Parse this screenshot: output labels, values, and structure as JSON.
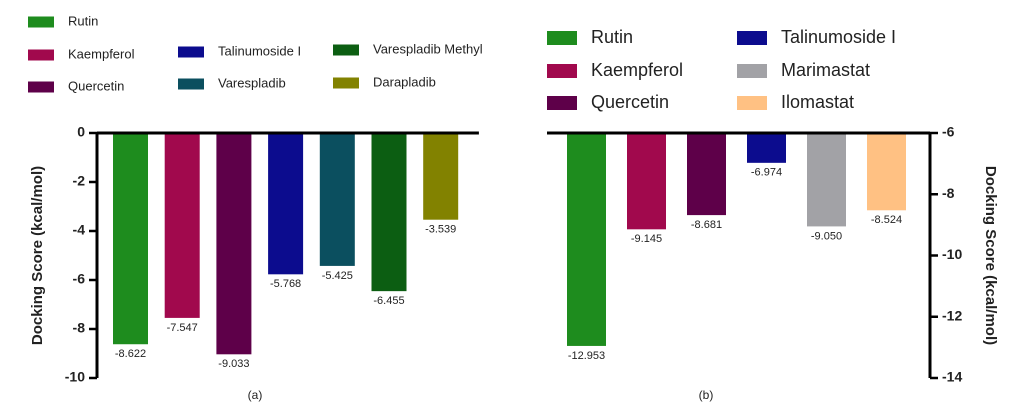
{
  "chart_data": [
    {
      "type": "bar",
      "y_label": "Docking Score (kcal/mol)",
      "caption": "(a)",
      "axis_side": "left",
      "categories": [
        "Rutin",
        "Kaempferol",
        "Quercetin",
        "Talinumoside I",
        "Varespladib",
        "Varespladib Methyl",
        "Darapladib"
      ],
      "values": [
        -8.622,
        -7.547,
        -9.033,
        -5.768,
        -5.425,
        -6.455,
        -3.539
      ],
      "value_labels": [
        "-8.622",
        "-7.547",
        "-9.033",
        "-5.768",
        "-5.425",
        "-6.455",
        "-3.539"
      ],
      "colors": [
        "#1e8c1e",
        "#a1094d",
        "#5e0049",
        "#0c0c8e",
        "#0b4f5f",
        "#0c5e12",
        "#828200"
      ],
      "ylim": [
        -10,
        0
      ],
      "yticks": [
        0,
        -2,
        -4,
        -6,
        -8,
        -10
      ]
    },
    {
      "type": "bar",
      "y_label": "Docking Score (kcal/mol)",
      "caption": "(b)",
      "axis_side": "right",
      "categories": [
        "Rutin",
        "Kaempferol",
        "Quercetin",
        "Talinumoside I",
        "Marimastat",
        "Ilomastat"
      ],
      "values": [
        -12.953,
        -9.145,
        -8.681,
        -6.974,
        -9.05,
        -8.524
      ],
      "value_labels": [
        "-12.953",
        "-9.145",
        "-8.681",
        "-6.974",
        "-9.050",
        "-8.524"
      ],
      "colors": [
        "#1e8c1e",
        "#a1094d",
        "#5e0049",
        "#0c0c8e",
        "#a2a2a6",
        "#ffc183"
      ],
      "ylim": [
        -14,
        -6
      ],
      "yticks": [
        -6,
        -8,
        -10,
        -12,
        -14
      ]
    }
  ]
}
